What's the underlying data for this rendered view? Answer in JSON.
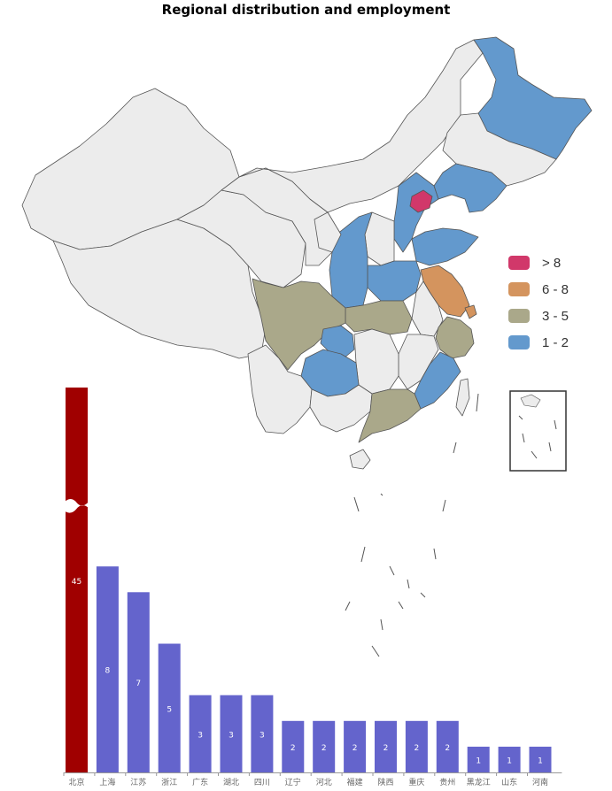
{
  "title": "Regional distribution and employment",
  "legend": [
    {
      "label": "> 8",
      "color": "#d1386a"
    },
    {
      "label": "6 - 8",
      "color": "#d4945e"
    },
    {
      "label": "3 - 5",
      "color": "#aaa88a"
    },
    {
      "label": "1 - 2",
      "color": "#6399cd"
    }
  ],
  "map": {
    "default_color": "#ececec",
    "border_color": "#555555"
  },
  "chart_data": [
    {
      "type": "bar",
      "categories": [
        "北京",
        "上海",
        "江苏",
        "浙江",
        "广东",
        "湖北",
        "四川",
        "辽宁",
        "河北",
        "福建",
        "陕西",
        "重庆",
        "贵州",
        "黑龙江",
        "山东",
        "河南"
      ],
      "values": [
        45,
        8,
        7,
        5,
        3,
        3,
        3,
        2,
        2,
        2,
        2,
        2,
        2,
        1,
        1,
        1
      ],
      "colors": [
        "#a00000",
        "#6464cc",
        "#6464cc",
        "#6464cc",
        "#6464cc",
        "#6464cc",
        "#6464cc",
        "#6464cc",
        "#6464cc",
        "#6464cc",
        "#6464cc",
        "#6464cc",
        "#6464cc",
        "#6464cc",
        "#6464cc",
        "#6464cc"
      ],
      "axis_break": true,
      "data_labels": true
    },
    {
      "type": "choropleth",
      "regions": [
        {
          "name": "北京",
          "value": 45,
          "bin": "> 8"
        },
        {
          "name": "江苏",
          "value": 7,
          "bin": "6 - 8"
        },
        {
          "name": "上海",
          "value": 8,
          "bin": "6 - 8"
        },
        {
          "name": "浙江",
          "value": 5,
          "bin": "3 - 5"
        },
        {
          "name": "广东",
          "value": 3,
          "bin": "3 - 5"
        },
        {
          "name": "湖北",
          "value": 3,
          "bin": "3 - 5"
        },
        {
          "name": "四川",
          "value": 3,
          "bin": "3 - 5"
        },
        {
          "name": "辽宁",
          "value": 2,
          "bin": "1 - 2"
        },
        {
          "name": "河北",
          "value": 2,
          "bin": "1 - 2"
        },
        {
          "name": "福建",
          "value": 2,
          "bin": "1 - 2"
        },
        {
          "name": "陕西",
          "value": 2,
          "bin": "1 - 2"
        },
        {
          "name": "重庆",
          "value": 2,
          "bin": "1 - 2"
        },
        {
          "name": "贵州",
          "value": 2,
          "bin": "1 - 2"
        },
        {
          "name": "黑龙江",
          "value": 1,
          "bin": "1 - 2"
        },
        {
          "name": "山东",
          "value": 1,
          "bin": "1 - 2"
        },
        {
          "name": "河南",
          "value": 1,
          "bin": "1 - 2"
        }
      ]
    }
  ]
}
